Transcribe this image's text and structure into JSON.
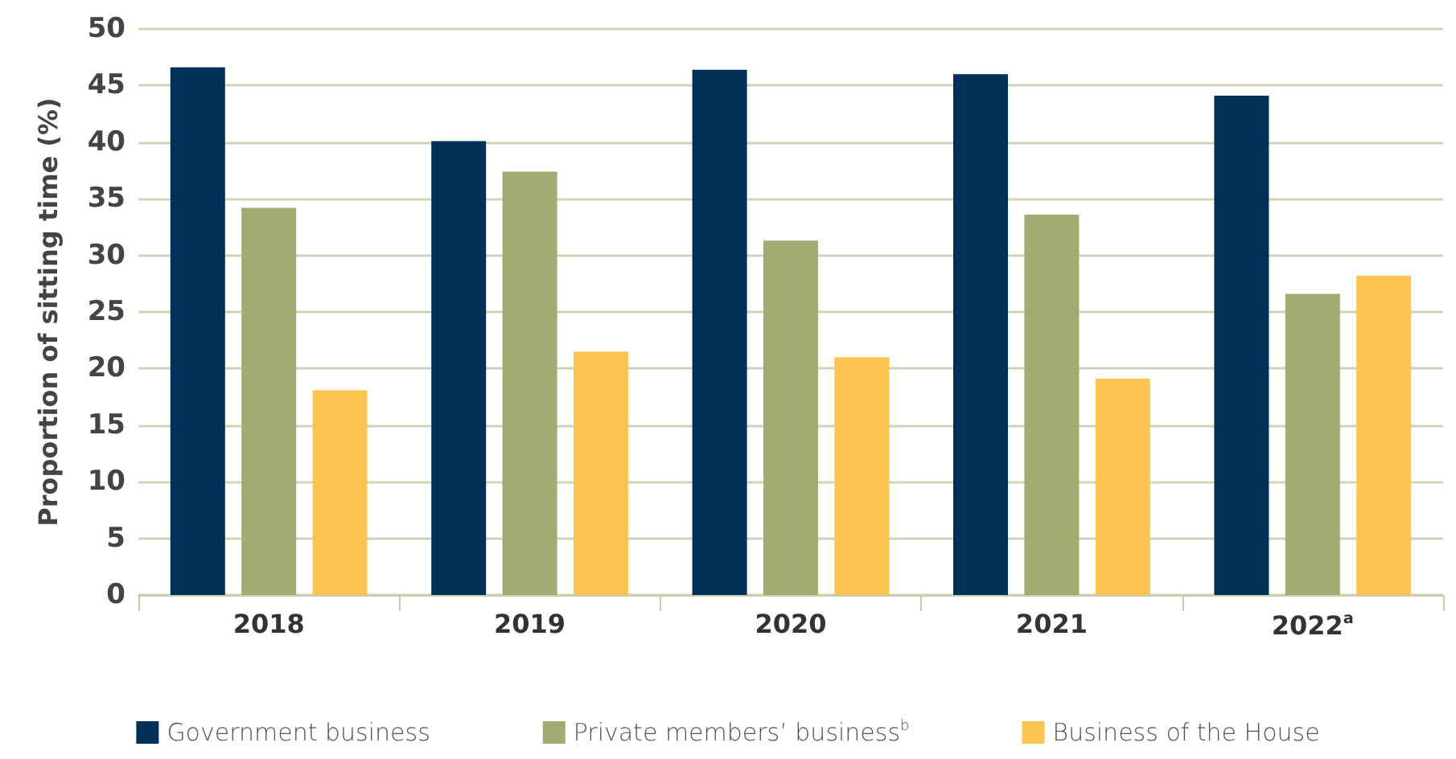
{
  "chart_data": {
    "type": "bar",
    "ylabel": "Proportion of sitting time (%)",
    "categories": [
      "2018",
      "2019",
      "2020",
      "2021",
      "2022$^{a}$"
    ],
    "series": [
      {
        "name": "Government business",
        "color": "#003057",
        "values": [
          46.6,
          40.1,
          46.4,
          46.0,
          44.1
        ]
      },
      {
        "name": "Private members’ business$^{b}$",
        "color": "#a2ab72",
        "values": [
          34.2,
          37.4,
          31.3,
          33.6,
          26.6
        ]
      },
      {
        "name": "Business of the House",
        "color": "#fdc451",
        "values": [
          18.1,
          21.5,
          21.0,
          19.1,
          28.2
        ]
      }
    ],
    "ylim": [
      0,
      50
    ],
    "yticks": [
      0,
      5,
      10,
      15,
      20,
      25,
      30,
      35,
      40,
      45,
      50
    ],
    "grid": "y",
    "legend": "bottom"
  }
}
